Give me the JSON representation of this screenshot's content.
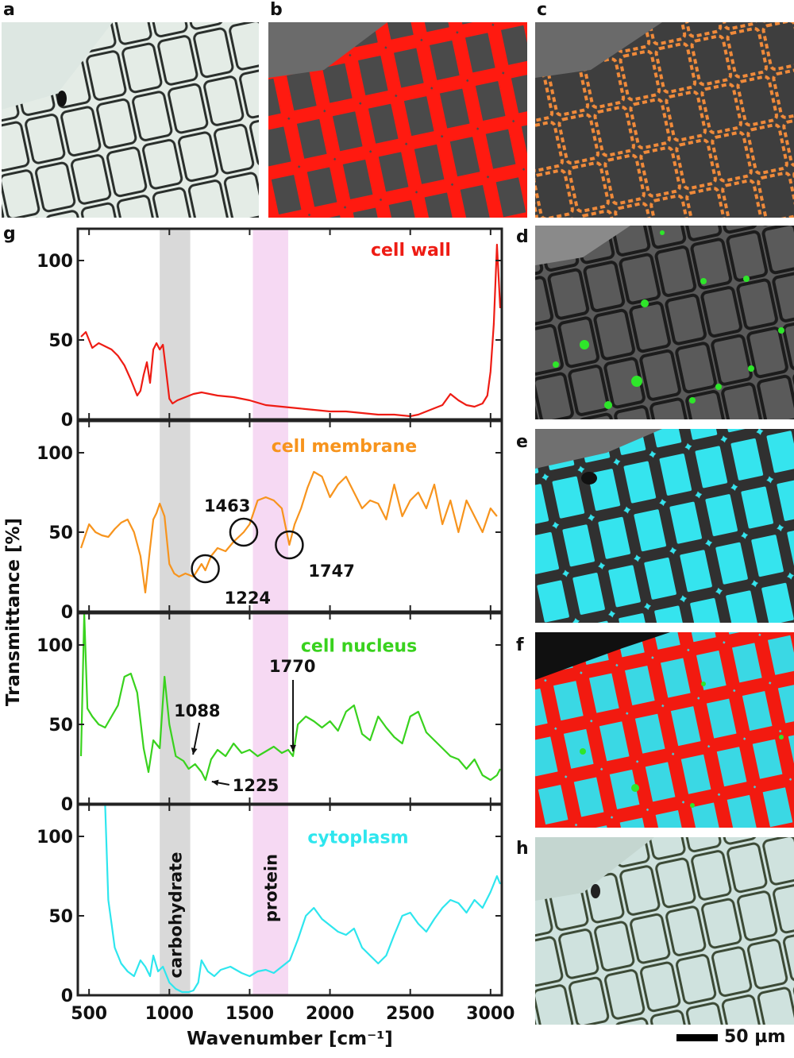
{
  "panel_labels": {
    "a": "a",
    "b": "b",
    "c": "c",
    "d": "d",
    "e": "e",
    "f": "f",
    "g": "g",
    "h": "h"
  },
  "scale_bar": "50 µm",
  "colors": {
    "cell_wall": "#ee1c14",
    "cell_membrane": "#f7941d",
    "cell_nucleus": "#39d21e",
    "cytoplasm": "#2ee6ee",
    "carbohydrate_band": "#d9d9d9",
    "protein_band": "#f6d9f3"
  },
  "chart_data": {
    "type": "line",
    "xlabel": "Wavenumber [cm⁻¹]",
    "ylabel": "Transmittance [%]",
    "xlim": [
      430,
      3070
    ],
    "ylim": [
      0,
      120
    ],
    "xticks": [
      "500",
      "1000",
      "1500",
      "2000",
      "2500",
      "3000"
    ],
    "yticks": [
      "0",
      "50",
      "100"
    ],
    "bands": [
      {
        "label": "carbohydrate",
        "range": [
          940,
          1130
        ]
      },
      {
        "label": "protein",
        "range": [
          1520,
          1740
        ]
      }
    ],
    "panels": [
      {
        "name": "cell wall",
        "x": [
          450,
          480,
          520,
          560,
          600,
          640,
          680,
          720,
          760,
          800,
          820,
          840,
          860,
          880,
          900,
          920,
          940,
          960,
          980,
          1000,
          1020,
          1050,
          1100,
          1150,
          1200,
          1300,
          1400,
          1500,
          1600,
          1700,
          1800,
          1900,
          2000,
          2100,
          2200,
          2300,
          2400,
          2500,
          2550,
          2600,
          2650,
          2700,
          2750,
          2800,
          2850,
          2900,
          2950,
          2980,
          3000,
          3020,
          3040,
          3060
        ],
        "y": [
          52,
          55,
          45,
          48,
          46,
          44,
          40,
          34,
          25,
          15,
          18,
          28,
          36,
          23,
          44,
          48,
          44,
          47,
          30,
          13,
          10,
          12,
          14,
          16,
          17,
          15,
          14,
          12,
          9,
          8,
          7,
          6,
          5,
          5,
          4,
          3,
          3,
          2,
          3,
          5,
          7,
          9,
          16,
          12,
          9,
          8,
          10,
          15,
          30,
          60,
          110,
          70
        ]
      },
      {
        "name": "cell membrane",
        "x": [
          450,
          500,
          540,
          580,
          620,
          660,
          700,
          740,
          780,
          820,
          850,
          880,
          900,
          920,
          940,
          970,
          1000,
          1030,
          1060,
          1100,
          1150,
          1200,
          1224,
          1260,
          1300,
          1350,
          1400,
          1463,
          1500,
          1550,
          1600,
          1650,
          1700,
          1747,
          1780,
          1820,
          1860,
          1900,
          1950,
          2000,
          2050,
          2100,
          2150,
          2200,
          2250,
          2300,
          2350,
          2400,
          2450,
          2500,
          2550,
          2600,
          2650,
          2700,
          2750,
          2800,
          2850,
          2900,
          2950,
          3000,
          3040
        ],
        "y": [
          40,
          55,
          50,
          48,
          47,
          52,
          56,
          58,
          50,
          35,
          12,
          40,
          58,
          62,
          68,
          60,
          30,
          24,
          22,
          24,
          22,
          30,
          26,
          35,
          40,
          38,
          44,
          50,
          55,
          70,
          72,
          70,
          65,
          42,
          55,
          65,
          78,
          88,
          85,
          72,
          80,
          85,
          75,
          65,
          70,
          68,
          58,
          80,
          60,
          70,
          75,
          65,
          80,
          55,
          70,
          50,
          70,
          60,
          50,
          65,
          60
        ]
      },
      {
        "name": "cell nucleus",
        "x": [
          450,
          470,
          490,
          520,
          560,
          600,
          640,
          680,
          720,
          760,
          800,
          840,
          870,
          900,
          940,
          970,
          1000,
          1040,
          1088,
          1120,
          1160,
          1200,
          1225,
          1260,
          1300,
          1350,
          1400,
          1450,
          1500,
          1550,
          1600,
          1650,
          1700,
          1740,
          1770,
          1800,
          1850,
          1900,
          1950,
          2000,
          2050,
          2100,
          2150,
          2200,
          2250,
          2300,
          2350,
          2400,
          2450,
          2500,
          2550,
          2600,
          2650,
          2700,
          2750,
          2800,
          2850,
          2900,
          2950,
          3000,
          3040,
          3060
        ],
        "y": [
          30,
          120,
          60,
          55,
          50,
          48,
          55,
          62,
          80,
          82,
          70,
          35,
          20,
          40,
          35,
          80,
          50,
          30,
          27,
          22,
          25,
          20,
          15,
          28,
          34,
          30,
          38,
          32,
          34,
          30,
          33,
          36,
          32,
          34,
          30,
          50,
          55,
          52,
          48,
          52,
          46,
          58,
          62,
          44,
          40,
          55,
          48,
          42,
          38,
          55,
          58,
          45,
          40,
          35,
          30,
          28,
          22,
          28,
          18,
          15,
          18,
          22
        ]
      },
      {
        "name": "cytoplasm",
        "x": [
          450,
          500,
          550,
          600,
          620,
          640,
          660,
          700,
          740,
          780,
          820,
          850,
          880,
          900,
          930,
          960,
          1000,
          1040,
          1080,
          1120,
          1150,
          1180,
          1200,
          1240,
          1280,
          1320,
          1380,
          1450,
          1500,
          1550,
          1600,
          1650,
          1700,
          1750,
          1800,
          1850,
          1900,
          1950,
          2000,
          2050,
          2100,
          2150,
          2200,
          2250,
          2300,
          2350,
          2400,
          2450,
          2500,
          2550,
          2600,
          2650,
          2700,
          2750,
          2800,
          2850,
          2900,
          2950,
          3000,
          3040,
          3060
        ],
        "y": [
          120,
          120,
          120,
          120,
          60,
          45,
          30,
          20,
          15,
          12,
          22,
          18,
          12,
          25,
          15,
          18,
          8,
          4,
          2,
          2,
          3,
          8,
          22,
          15,
          12,
          16,
          18,
          14,
          12,
          15,
          16,
          14,
          18,
          22,
          35,
          50,
          55,
          48,
          44,
          40,
          38,
          42,
          30,
          25,
          20,
          25,
          38,
          50,
          52,
          45,
          40,
          48,
          55,
          60,
          58,
          52,
          60,
          55,
          65,
          75,
          70
        ]
      }
    ],
    "annotations": [
      {
        "text": "1463",
        "panel": 1
      },
      {
        "text": "1224",
        "panel": 1
      },
      {
        "text": "1747",
        "panel": 1
      },
      {
        "text": "1088",
        "panel": 2
      },
      {
        "text": "1770",
        "panel": 2
      },
      {
        "text": "1225",
        "panel": 2
      }
    ]
  }
}
